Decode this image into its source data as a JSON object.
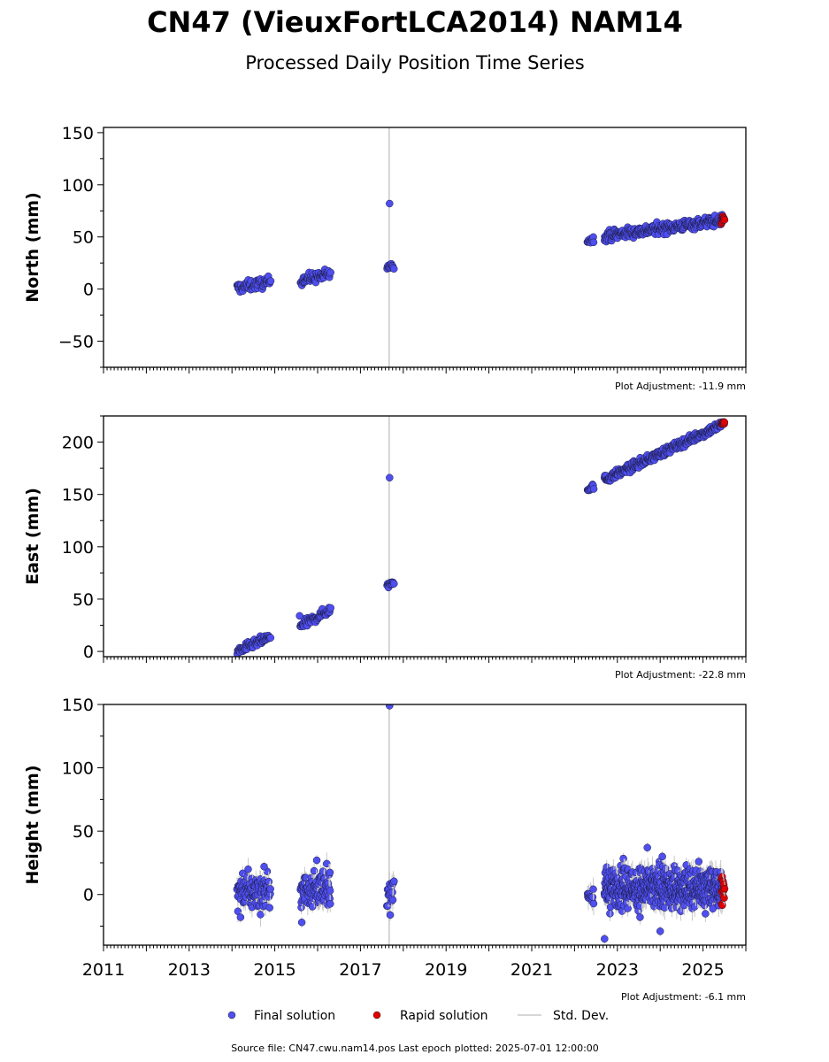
{
  "header": {
    "title": "CN47 (VieuxFortLCA2014) NAM14",
    "subtitle": "Processed Daily Position Time Series"
  },
  "footer": {
    "source": "Source file: CN47.cwu.nam14.pos  Last epoch plotted: 2025-07-01 12:00:00"
  },
  "colors": {
    "final": "#4f4ff0",
    "rapid": "#e00000",
    "stddev": "#c8c8c8"
  },
  "chart_data": {
    "type": "scatter",
    "x_axis": {
      "range": [
        2011.0,
        2026.0
      ],
      "tick_labels": [
        "2011",
        "2013",
        "2015",
        "2017",
        "2019",
        "2021",
        "2023",
        "2025"
      ],
      "tick_values": [
        2011,
        2013,
        2015,
        2017,
        2019,
        2021,
        2023,
        2025
      ]
    },
    "legend": {
      "placement": "bottom-center",
      "entries": [
        "Final solution",
        "Rapid solution",
        "Std. Dev."
      ]
    },
    "event_line_x": 2017.67,
    "panels": [
      {
        "id": "north",
        "ylabel": "North (mm)",
        "ylim": [
          -75,
          155
        ],
        "ytick_values": [
          -50,
          0,
          50,
          100,
          150
        ],
        "ytick_labels": [
          "−50",
          "0",
          "50",
          "100",
          "150"
        ],
        "adjustment": "Plot Adjustment: -11.9 mm",
        "final_segments": [
          {
            "x": [
              2014.12,
              2014.9
            ],
            "y": [
              1,
              7
            ],
            "scatter": 2.5,
            "n": 70
          },
          {
            "x": [
              2015.6,
              2016.3
            ],
            "y": [
              9,
              14
            ],
            "scatter": 2.5,
            "n": 60
          },
          {
            "x": [
              2017.62,
              2017.78
            ],
            "y": [
              21,
              22
            ],
            "scatter": 1.5,
            "n": 14
          },
          {
            "x": [
              2022.3,
              2022.45
            ],
            "y": [
              46,
              48
            ],
            "scatter": 1.5,
            "n": 12
          },
          {
            "x": [
              2022.7,
              2025.45
            ],
            "y": [
              51,
              66
            ],
            "scatter": 2.5,
            "n": 300
          }
        ],
        "final_points": [
          {
            "x": 2017.68,
            "y": 82
          }
        ],
        "rapid_segment": {
          "x": [
            2025.43,
            2025.5
          ],
          "y": [
            66,
            68
          ],
          "scatter": 2,
          "n": 10
        }
      },
      {
        "id": "east",
        "ylabel": "East (mm)",
        "ylim": [
          -5,
          225
        ],
        "ytick_values": [
          0,
          50,
          100,
          150,
          200
        ],
        "ytick_labels": [
          "0",
          "50",
          "100",
          "150",
          "200"
        ],
        "adjustment": "Plot Adjustment: -22.8 mm",
        "final_segments": [
          {
            "x": [
              2014.12,
              2014.9
            ],
            "y": [
              0,
              14
            ],
            "scatter": 2,
            "n": 70
          },
          {
            "x": [
              2015.6,
              2016.3
            ],
            "y": [
              24,
              40
            ],
            "scatter": 2,
            "n": 60
          },
          {
            "x": [
              2017.62,
              2017.78
            ],
            "y": [
              63,
              67
            ],
            "scatter": 1.5,
            "n": 14
          },
          {
            "x": [
              2022.3,
              2022.45
            ],
            "y": [
              155,
              158
            ],
            "scatter": 1.5,
            "n": 12
          },
          {
            "x": [
              2022.7,
              2025.45
            ],
            "y": [
              164,
              217
            ],
            "scatter": 2,
            "n": 300
          }
        ],
        "final_points": [
          {
            "x": 2015.58,
            "y": 34
          },
          {
            "x": 2017.68,
            "y": 166
          }
        ],
        "rapid_segment": {
          "x": [
            2025.43,
            2025.5
          ],
          "y": [
            217,
            219
          ],
          "scatter": 1.5,
          "n": 10
        }
      },
      {
        "id": "height",
        "ylabel": "Height (mm)",
        "ylim": [
          -40,
          150
        ],
        "ytick_values": [
          0,
          50,
          100,
          150
        ],
        "ytick_labels": [
          "0",
          "50",
          "100",
          "150"
        ],
        "adjustment": "Plot Adjustment: -6.1 mm",
        "final_segments": [
          {
            "x": [
              2014.12,
              2014.9
            ],
            "y": [
              2,
              2
            ],
            "scatter": 7,
            "n": 110
          },
          {
            "x": [
              2015.6,
              2016.3
            ],
            "y": [
              4,
              4
            ],
            "scatter": 7,
            "n": 100
          },
          {
            "x": [
              2017.62,
              2017.78
            ],
            "y": [
              2,
              2
            ],
            "scatter": 7,
            "n": 18
          },
          {
            "x": [
              2022.3,
              2022.45
            ],
            "y": [
              0,
              0
            ],
            "scatter": 5,
            "n": 14
          },
          {
            "x": [
              2022.7,
              2025.45
            ],
            "y": [
              5,
              5
            ],
            "scatter": 8,
            "n": 600
          }
        ],
        "final_points": [
          {
            "x": 2017.68,
            "y": 149
          },
          {
            "x": 2015.63,
            "y": -22
          },
          {
            "x": 2015.98,
            "y": 27
          },
          {
            "x": 2014.2,
            "y": -18
          },
          {
            "x": 2022.7,
            "y": -35
          },
          {
            "x": 2024.0,
            "y": -29
          },
          {
            "x": 2023.7,
            "y": 37
          },
          {
            "x": 2024.05,
            "y": 30
          },
          {
            "x": 2024.9,
            "y": 26
          },
          {
            "x": 2014.75,
            "y": 22
          }
        ],
        "rapid_segment": {
          "x": [
            2025.43,
            2025.5
          ],
          "y": [
            3,
            3
          ],
          "scatter": 6,
          "n": 14
        }
      }
    ]
  }
}
